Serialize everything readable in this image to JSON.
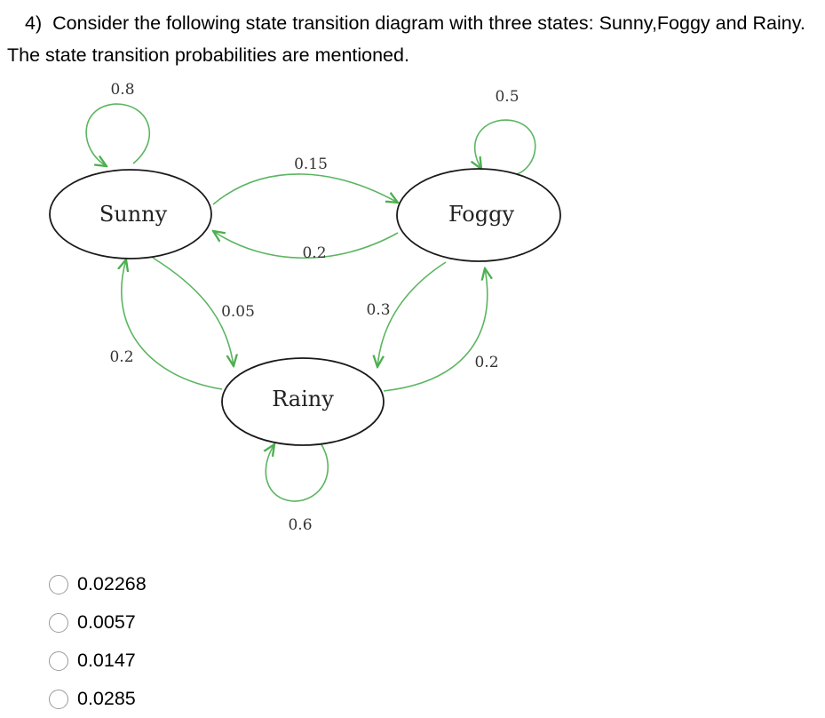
{
  "question": {
    "number": "4)",
    "text": "Consider the following state transition diagram with three states: Sunny,Foggy and Rainy. The state transition probabilities are mentioned."
  },
  "diagram": {
    "states": {
      "sunny": "Sunny",
      "foggy": "Foggy",
      "rainy": "Rainy"
    },
    "transitions": {
      "sunny_sunny": "0.8",
      "foggy_foggy": "0.5",
      "rainy_rainy": "0.6",
      "sunny_foggy": "0.15",
      "foggy_sunny": "0.2",
      "sunny_rainy": "0.05",
      "rainy_sunny": "0.2",
      "foggy_rainy": "0.3",
      "rainy_foggy": "0.2"
    },
    "edge_color": "#4caf50"
  },
  "options": [
    {
      "label": "0.02268"
    },
    {
      "label": "0.0057"
    },
    {
      "label": "0.0147"
    },
    {
      "label": "0.0285"
    }
  ]
}
